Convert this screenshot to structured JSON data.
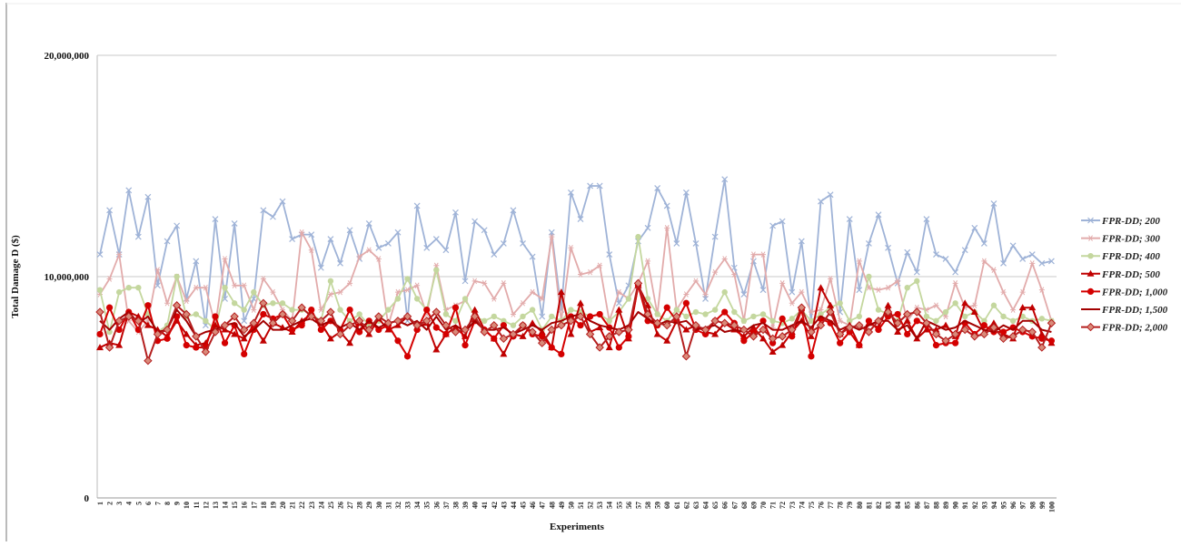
{
  "chart_data": {
    "type": "line",
    "title": "",
    "xlabel": "Experiments",
    "ylabel": "Total Damage D ($)",
    "value_scale": 1000000,
    "ylim": [
      0,
      20000000
    ],
    "yticks": [
      {
        "value": 0,
        "label": "0"
      },
      {
        "value": 10000000,
        "label": "10,000,000"
      },
      {
        "value": 20000000,
        "label": "20,000,000"
      }
    ],
    "grid": true,
    "legend_position": "right",
    "x": [
      1,
      2,
      3,
      4,
      5,
      6,
      7,
      8,
      9,
      10,
      11,
      12,
      13,
      14,
      15,
      16,
      17,
      18,
      19,
      20,
      21,
      22,
      23,
      24,
      25,
      26,
      27,
      28,
      29,
      30,
      31,
      32,
      33,
      34,
      35,
      36,
      37,
      38,
      39,
      40,
      41,
      42,
      43,
      44,
      45,
      46,
      47,
      48,
      49,
      50,
      51,
      52,
      53,
      54,
      55,
      56,
      57,
      58,
      59,
      60,
      61,
      62,
      63,
      64,
      65,
      66,
      67,
      68,
      69,
      70,
      71,
      72,
      73,
      74,
      75,
      76,
      77,
      78,
      79,
      80,
      81,
      82,
      83,
      84,
      85,
      86,
      87,
      88,
      89,
      90,
      91,
      92,
      93,
      94,
      95,
      96,
      97,
      98,
      99,
      100
    ],
    "series": [
      {
        "name": "FPR-DD; 200",
        "color": "#9fb3d7",
        "marker": "x",
        "values": [
          11.0,
          13.0,
          11.0,
          13.9,
          11.8,
          13.6,
          9.6,
          11.6,
          12.3,
          9.0,
          10.7,
          7.8,
          12.6,
          9.0,
          12.4,
          8.0,
          9.0,
          13.0,
          12.7,
          13.4,
          11.7,
          11.9,
          11.9,
          10.4,
          11.7,
          10.6,
          12.1,
          10.8,
          12.4,
          11.3,
          11.5,
          12.0,
          8.0,
          13.2,
          11.3,
          11.7,
          11.2,
          12.9,
          9.8,
          12.5,
          12.1,
          11.0,
          11.5,
          13.0,
          11.5,
          10.9,
          8.2,
          12.0,
          8.5,
          13.8,
          12.6,
          14.1,
          14.1,
          11.0,
          8.8,
          9.6,
          11.6,
          12.2,
          14.0,
          13.2,
          11.5,
          13.8,
          11.5,
          9.0,
          11.8,
          14.4,
          10.4,
          9.2,
          10.7,
          9.4,
          12.3,
          12.5,
          9.3,
          11.6,
          8.0,
          13.4,
          13.7,
          8.4,
          12.6,
          9.4,
          11.5,
          12.8,
          11.3,
          9.7,
          11.1,
          10.2,
          12.6,
          11.0,
          10.8,
          10.2,
          11.2,
          12.2,
          11.5,
          13.3,
          10.6,
          11.4,
          10.8,
          11.0,
          10.6,
          10.7
        ]
      },
      {
        "name": "FPR-DD; 300",
        "color": "#e2abab",
        "marker": "star",
        "values": [
          9.2,
          9.9,
          11.0,
          8.0,
          7.5,
          8.0,
          10.3,
          8.8,
          10.0,
          8.9,
          9.5,
          9.5,
          7.8,
          10.8,
          9.6,
          9.6,
          8.5,
          9.9,
          9.3,
          8.5,
          8.0,
          12.0,
          11.2,
          8.5,
          9.2,
          9.3,
          9.7,
          10.9,
          11.2,
          10.8,
          7.8,
          9.3,
          9.4,
          9.6,
          8.3,
          10.5,
          8.5,
          8.7,
          8.9,
          9.8,
          9.7,
          9.0,
          9.7,
          8.3,
          8.8,
          9.3,
          9.0,
          11.8,
          8.0,
          11.3,
          10.1,
          10.2,
          10.5,
          8.0,
          9.3,
          9.0,
          9.7,
          10.7,
          8.3,
          12.2,
          8.5,
          9.2,
          9.8,
          9.2,
          10.2,
          10.8,
          10.1,
          8.0,
          11.0,
          11.0,
          7.7,
          9.7,
          8.8,
          9.3,
          8.4,
          8.5,
          9.9,
          8.0,
          7.8,
          10.7,
          9.5,
          9.4,
          9.5,
          9.8,
          8.0,
          8.6,
          8.5,
          8.7,
          8.2,
          9.7,
          8.6,
          8.7,
          10.7,
          10.3,
          9.3,
          8.5,
          9.3,
          10.6,
          9.4,
          8.0
        ]
      },
      {
        "name": "FPR-DD; 400",
        "color": "#c4d79e",
        "marker": "circle",
        "values": [
          9.4,
          7.5,
          9.3,
          9.5,
          9.5,
          8.3,
          7.5,
          7.8,
          10.0,
          8.2,
          8.3,
          8.0,
          7.6,
          9.5,
          8.8,
          8.5,
          9.3,
          8.7,
          8.8,
          8.8,
          8.5,
          8.5,
          8.3,
          8.0,
          9.8,
          8.5,
          8.0,
          8.3,
          7.8,
          8.0,
          8.5,
          9.0,
          9.9,
          9.0,
          8.5,
          10.3,
          8.3,
          8.0,
          9.0,
          8.2,
          8.0,
          8.2,
          8.0,
          7.8,
          8.2,
          8.5,
          7.6,
          8.2,
          8.0,
          8.5,
          8.4,
          8.2,
          8.3,
          8.0,
          8.4,
          9.0,
          11.8,
          9.0,
          8.3,
          8.0,
          8.5,
          8.2,
          8.4,
          8.3,
          8.5,
          9.3,
          8.4,
          8.0,
          8.2,
          8.3,
          8.0,
          7.9,
          8.1,
          8.5,
          8.0,
          8.3,
          8.6,
          8.8,
          8.0,
          8.2,
          10.0,
          8.5,
          8.3,
          8.0,
          9.5,
          9.8,
          8.2,
          8.0,
          8.4,
          8.8,
          8.2,
          8.4,
          8.0,
          8.7,
          8.2,
          8.0,
          8.2,
          8.0,
          8.1,
          8.0
        ]
      },
      {
        "name": "FPR-DD; 500",
        "color": "#c00000",
        "marker": "triangle",
        "values": [
          6.8,
          7.0,
          6.9,
          8.4,
          8.2,
          7.8,
          7.6,
          7.3,
          8.0,
          7.4,
          6.9,
          7.0,
          7.8,
          7.6,
          7.4,
          7.2,
          7.8,
          7.1,
          7.9,
          7.7,
          7.5,
          8.0,
          8.3,
          7.9,
          7.2,
          7.5,
          7.0,
          7.9,
          7.4,
          8.1,
          7.6,
          7.8,
          8.2,
          7.7,
          7.9,
          6.7,
          7.4,
          7.7,
          7.3,
          8.5,
          7.6,
          7.2,
          6.5,
          7.4,
          7.3,
          7.9,
          7.5,
          6.8,
          9.3,
          7.4,
          8.8,
          7.5,
          7.7,
          6.8,
          8.5,
          7.2,
          9.6,
          8.7,
          7.4,
          7.1,
          8.0,
          7.6,
          7.8,
          7.5,
          7.4,
          7.9,
          7.6,
          7.3,
          7.7,
          7.2,
          6.6,
          6.9,
          7.5,
          8.0,
          7.3,
          9.5,
          8.7,
          7.4,
          7.8,
          6.9,
          7.9,
          7.7,
          8.7,
          7.5,
          8.0,
          7.2,
          7.6,
          7.6,
          7.8,
          7.3,
          8.8,
          8.4,
          7.5,
          7.9,
          7.4,
          7.2,
          8.6,
          8.6,
          7.4,
          7.0
        ]
      },
      {
        "name": "FPR-DD; 1,000",
        "color": "#d40000",
        "marker": "dot",
        "values": [
          7.4,
          8.6,
          7.6,
          8.4,
          7.6,
          8.7,
          7.1,
          7.2,
          8.2,
          6.9,
          6.8,
          6.8,
          8.2,
          7.0,
          7.8,
          6.5,
          7.6,
          8.3,
          8.1,
          8.3,
          7.6,
          7.8,
          8.5,
          7.6,
          8.0,
          7.6,
          8.5,
          7.5,
          8.0,
          7.6,
          7.8,
          7.1,
          6.4,
          7.6,
          8.5,
          7.7,
          7.4,
          8.6,
          6.9,
          8.0,
          7.6,
          7.2,
          7.8,
          7.3,
          7.8,
          7.4,
          7.3,
          6.8,
          6.5,
          8.2,
          7.8,
          8.2,
          8.3,
          7.7,
          6.8,
          7.3,
          9.6,
          8.0,
          7.8,
          8.6,
          8.0,
          8.8,
          7.6,
          7.4,
          8.0,
          8.4,
          7.9,
          7.1,
          7.5,
          8.0,
          7.0,
          8.1,
          7.3,
          8.5,
          6.4,
          8.1,
          7.9,
          7.0,
          7.5,
          6.9,
          8.0,
          7.6,
          8.2,
          8.3,
          7.4,
          8.0,
          7.8,
          6.9,
          7.0,
          7.0,
          7.9,
          7.4,
          7.8,
          7.5,
          7.5,
          7.7,
          7.5,
          7.3,
          7.2,
          7.1
        ]
      },
      {
        "name": "FPR-DD; 1,500",
        "color": "#a30000",
        "marker": "none",
        "values": [
          8.0,
          7.6,
          8.1,
          8.4,
          7.9,
          8.2,
          7.5,
          7.6,
          8.5,
          8.0,
          7.3,
          7.5,
          7.6,
          7.8,
          7.9,
          7.3,
          7.6,
          8.0,
          7.6,
          7.6,
          7.8,
          8.0,
          8.1,
          7.8,
          8.0,
          7.7,
          7.9,
          7.6,
          8.0,
          7.7,
          7.9,
          8.0,
          7.8,
          8.0,
          7.6,
          8.2,
          7.6,
          7.8,
          7.5,
          8.0,
          7.6,
          7.6,
          7.7,
          7.4,
          7.6,
          7.8,
          7.6,
          7.9,
          8.0,
          8.2,
          8.3,
          8.0,
          7.8,
          7.7,
          7.6,
          7.8,
          8.4,
          8.1,
          7.8,
          8.0,
          7.9,
          8.0,
          7.6,
          7.7,
          7.8,
          7.5,
          7.6,
          7.5,
          7.8,
          7.9,
          7.6,
          7.6,
          7.8,
          8.0,
          7.7,
          8.2,
          8.0,
          7.6,
          7.8,
          7.6,
          7.8,
          8.0,
          8.0,
          7.6,
          7.8,
          7.2,
          8.0,
          7.8,
          7.6,
          7.7,
          8.0,
          7.8,
          7.6,
          7.5,
          7.8,
          7.6,
          8.0,
          8.0,
          7.6,
          7.5
        ]
      },
      {
        "name": "FPR-DD; 2,000",
        "color": "#b41e1e",
        "marker": "diamond",
        "values": [
          8.4,
          6.8,
          8.0,
          8.2,
          8.0,
          6.2,
          7.4,
          7.6,
          8.7,
          8.3,
          7.3,
          6.6,
          7.5,
          7.8,
          8.2,
          7.6,
          7.9,
          8.8,
          7.9,
          8.3,
          8.0,
          8.6,
          8.2,
          8.0,
          8.4,
          7.4,
          7.8,
          8.0,
          7.6,
          8.2,
          7.9,
          8.0,
          8.2,
          7.8,
          8.0,
          8.4,
          7.8,
          7.5,
          7.6,
          8.2,
          7.5,
          7.8,
          7.2,
          7.4,
          7.8,
          7.5,
          7.0,
          7.6,
          7.8,
          8.0,
          8.2,
          7.4,
          6.8,
          7.3,
          7.5,
          7.6,
          9.7,
          8.3,
          7.9,
          7.8,
          8.2,
          6.4,
          7.8,
          7.6,
          8.0,
          7.9,
          7.8,
          7.6,
          7.3,
          7.6,
          7.2,
          7.3,
          7.6,
          8.6,
          7.5,
          7.8,
          8.4,
          7.4,
          7.7,
          7.8,
          7.5,
          8.0,
          8.4,
          7.9,
          8.3,
          8.4,
          7.9,
          7.4,
          7.1,
          7.4,
          7.6,
          7.3,
          7.4,
          7.7,
          7.2,
          7.3,
          7.6,
          7.5,
          6.8,
          7.9
        ]
      }
    ]
  }
}
